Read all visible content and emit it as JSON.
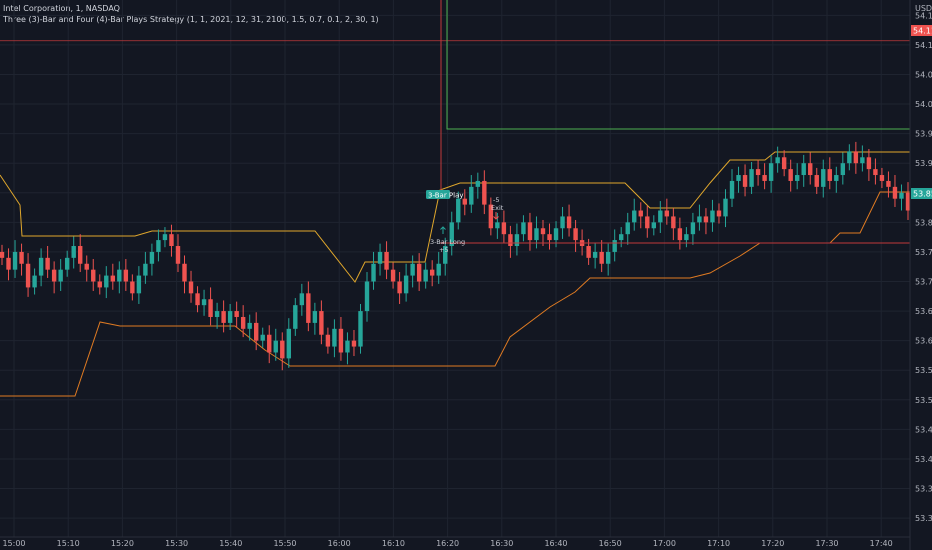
{
  "header": {
    "symbol_line": "Intel Corporation, 1, NASDAQ",
    "strategy_line": "Three (3)-Bar and Four (4)-Bar Plays Strategy (1, 1, 2021, 12, 31, 2100, 1.5, 0.7, 0.1, 2, 30, 1)"
  },
  "price_axis": {
    "currency": "USD",
    "ticks": [
      "54.15",
      "54.10",
      "54.05",
      "54.00",
      "53.95",
      "53.90",
      "53.85",
      "53.80",
      "53.75",
      "53.70",
      "53.65",
      "53.60",
      "53.55",
      "53.50",
      "53.45",
      "53.40",
      "53.35",
      "53.30"
    ],
    "tick_values": [
      54.15,
      54.1,
      54.05,
      54.0,
      53.95,
      53.9,
      53.85,
      53.8,
      53.75,
      53.7,
      53.65,
      53.6,
      53.55,
      53.5,
      53.45,
      53.4,
      53.35,
      53.3
    ],
    "red_tag": "54.11",
    "red_tag_value": 54.107,
    "green_tag": "53.85",
    "green_tag_value": 53.85
  },
  "time_axis": {
    "ticks": [
      "15:00",
      "15:10",
      "15:20",
      "15:30",
      "15:40",
      "15:50",
      "16:00",
      "16:10",
      "16:20",
      "16:30",
      "16:40",
      "16:50",
      "17:00",
      "17:10",
      "17:20",
      "17:30",
      "17:40"
    ]
  },
  "markers": {
    "entry_tag": "3-Bar Play",
    "long_label": "3-Bar Long",
    "long_qty": "+5",
    "exit_qty": "-5",
    "exit_label": "Exit"
  },
  "colors": {
    "background": "#131722",
    "grid": "#1f2430",
    "up": "#26a69a",
    "down": "#ef5350",
    "upper_band": "#e0a72c",
    "lower_band": "#e07b22",
    "target": "#4caf50",
    "stop": "#c0393b",
    "axis_text": "#b2b5be"
  },
  "chart_data": {
    "type": "candlestick",
    "ylim": [
      53.28,
      54.16
    ],
    "x_range": [
      "14:59",
      "17:47"
    ],
    "candles_close": [
      53.74,
      53.72,
      53.75,
      53.73,
      53.69,
      53.71,
      53.74,
      53.72,
      53.7,
      53.72,
      53.74,
      53.76,
      53.73,
      53.72,
      53.7,
      53.69,
      53.71,
      53.7,
      53.72,
      53.7,
      53.68,
      53.71,
      53.73,
      53.75,
      53.77,
      53.78,
      53.76,
      53.73,
      53.7,
      53.68,
      53.66,
      53.67,
      53.64,
      53.65,
      53.63,
      53.65,
      53.64,
      53.62,
      53.63,
      53.6,
      53.61,
      53.58,
      53.6,
      53.57,
      53.62,
      53.66,
      53.68,
      53.63,
      53.65,
      53.61,
      53.59,
      53.62,
      53.58,
      53.6,
      53.59,
      53.65,
      53.7,
      53.73,
      53.75,
      53.72,
      53.7,
      53.68,
      53.71,
      53.73,
      53.7,
      53.72,
      53.71,
      53.73,
      53.76,
      53.8,
      53.84,
      53.83,
      53.86,
      53.87,
      53.83,
      53.79,
      53.8,
      53.78,
      53.76,
      53.78,
      53.8,
      53.77,
      53.79,
      53.78,
      53.77,
      53.79,
      53.81,
      53.79,
      53.77,
      53.76,
      53.74,
      53.75,
      53.73,
      53.75,
      53.77,
      53.78,
      53.8,
      53.82,
      53.81,
      53.79,
      53.8,
      53.82,
      53.81,
      53.79,
      53.77,
      53.78,
      53.8,
      53.81,
      53.8,
      53.82,
      53.81,
      53.84,
      53.87,
      53.88,
      53.86,
      53.89,
      53.88,
      53.87,
      53.9,
      53.91,
      53.89,
      53.87,
      53.88,
      53.9,
      53.88,
      53.86,
      53.89,
      53.87,
      53.88,
      53.9,
      53.92,
      53.9,
      53.91,
      53.89,
      53.88,
      53.87,
      53.86,
      53.84,
      53.85,
      53.82
    ]
  }
}
